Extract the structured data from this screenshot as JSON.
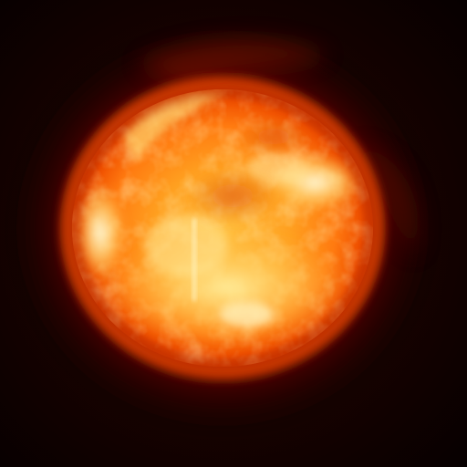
{
  "image": {
    "subject": "sun",
    "palette": {
      "background": "#080000",
      "background_vignette": "#1a0200",
      "corona_outer": "#5a0a00",
      "corona_inner": "#b82200",
      "limb": "#e03a00",
      "surface_mid": "#ff7a10",
      "surface_bright": "#ffb830",
      "highlight": "#ffe680",
      "hot_spot": "#fff4c0"
    }
  }
}
